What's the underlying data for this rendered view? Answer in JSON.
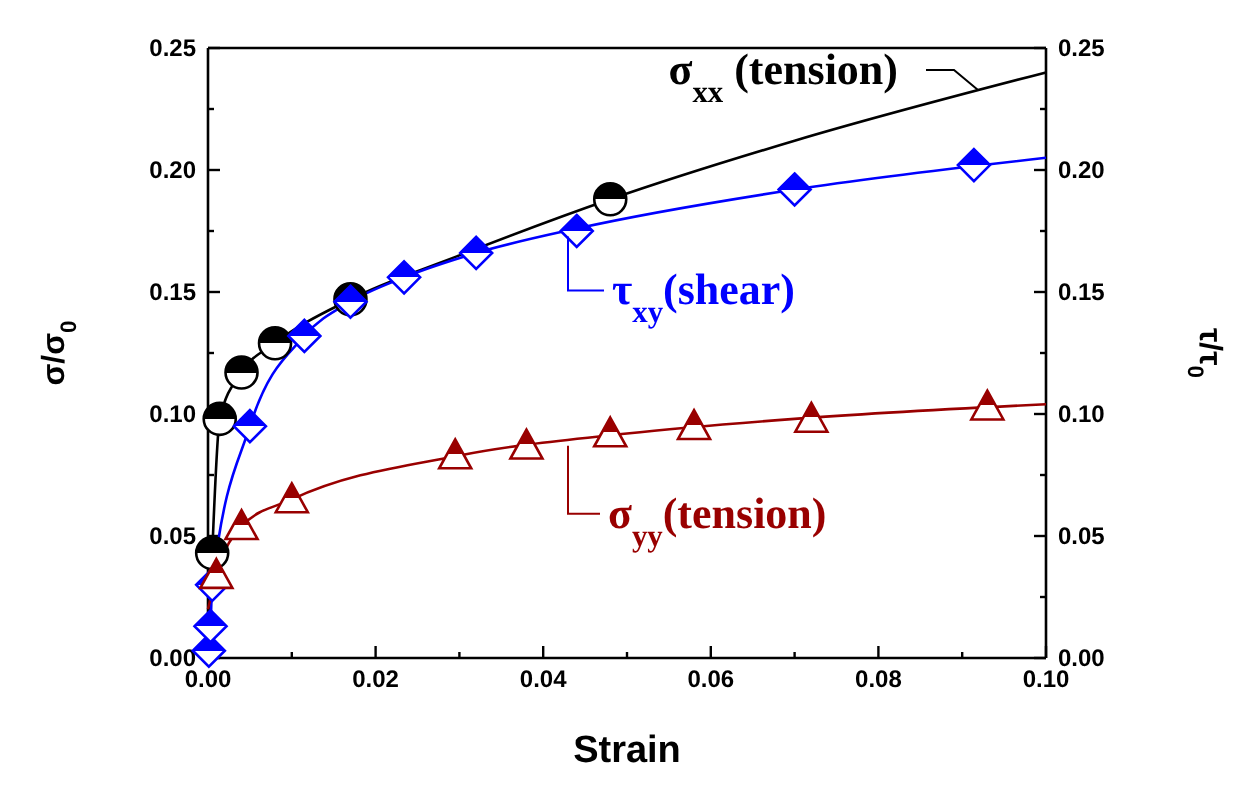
{
  "chart_data": {
    "type": "line",
    "xlabel": "Strain",
    "ylabel": "σ/σ$_{0}$",
    "y2label": "τ/τ$_{0}$",
    "xlim": [
      0,
      0.1
    ],
    "ylim": [
      0,
      0.25
    ],
    "y2lim": [
      0,
      0.25
    ],
    "xticks": [
      {
        "value": 0,
        "label": "0.00"
      },
      {
        "value": 0.01,
        "label": null
      },
      {
        "value": 0.02,
        "label": "0.02"
      },
      {
        "value": 0.03,
        "label": null
      },
      {
        "value": 0.04,
        "label": "0.04"
      },
      {
        "value": 0.05,
        "label": null
      },
      {
        "value": 0.06,
        "label": "0.06"
      },
      {
        "value": 0.07,
        "label": null
      },
      {
        "value": 0.08,
        "label": "0.08"
      },
      {
        "value": 0.09,
        "label": null
      },
      {
        "value": 0.1,
        "label": "0.10"
      }
    ],
    "yticks": [
      {
        "value": 0,
        "label": "0.00"
      },
      {
        "value": 0.025,
        "label": null
      },
      {
        "value": 0.05,
        "label": "0.05"
      },
      {
        "value": 0.075,
        "label": null
      },
      {
        "value": 0.1,
        "label": "0.10"
      },
      {
        "value": 0.125,
        "label": null
      },
      {
        "value": 0.15,
        "label": "0.15"
      },
      {
        "value": 0.175,
        "label": null
      },
      {
        "value": 0.2,
        "label": "0.20"
      },
      {
        "value": 0.225,
        "label": null
      },
      {
        "value": 0.25,
        "label": "0.25"
      }
    ],
    "y2ticks": [
      {
        "value": 0,
        "label": "0.00"
      },
      {
        "value": 0.025,
        "label": null
      },
      {
        "value": 0.05,
        "label": "0.05"
      },
      {
        "value": 0.075,
        "label": null
      },
      {
        "value": 0.1,
        "label": "0.10"
      },
      {
        "value": 0.125,
        "label": null
      },
      {
        "value": 0.15,
        "label": "0.15"
      },
      {
        "value": 0.175,
        "label": null
      },
      {
        "value": 0.2,
        "label": "0.20"
      },
      {
        "value": 0.225,
        "label": null
      },
      {
        "value": 0.25,
        "label": "0.25"
      }
    ],
    "grid": false,
    "series": [
      {
        "color": "#000000",
        "x": [
          0,
          0.0005,
          0.0014,
          0.004,
          0.008,
          0.017,
          0.03,
          0.048,
          0.07,
          0.1
        ],
        "values": [
          0,
          0.043,
          0.098,
          0.117,
          0.129,
          0.147,
          0.165,
          0.188,
          0.212,
          0.24
        ]
      },
      {
        "color": "#0000ff",
        "x": [
          0,
          0.0003,
          0.0005,
          0.005,
          0.0115,
          0.017,
          0.0234,
          0.032,
          0.044,
          0.07,
          0.1
        ],
        "values": [
          0,
          0.013,
          0.03,
          0.095,
          0.132,
          0.146,
          0.156,
          0.166,
          0.176,
          0.192,
          0.205
        ]
      },
      {
        "color": "#990000",
        "x": [
          0,
          0.001,
          0.004,
          0.01,
          0.03,
          0.05,
          0.07,
          0.1
        ],
        "values": [
          0.02,
          0.034,
          0.054,
          0.065,
          0.083,
          0.092,
          0.098,
          0.104
        ]
      },
      {
        "type": "scatter",
        "color": "#000000",
        "marker": "circle",
        "x": [
          0.0005,
          0.0014,
          0.004,
          0.008,
          0.017,
          0.048
        ],
        "values": [
          0.043,
          0.098,
          0.117,
          0.129,
          0.147,
          0.188
        ]
      },
      {
        "type": "scatter",
        "color": "#0000ff",
        "marker": "diamond",
        "x": [
          0.0001,
          0.0003,
          0.0005,
          0.005,
          0.0115,
          0.017,
          0.0234,
          0.032,
          0.044,
          0.07,
          0.0914
        ],
        "values": [
          0.003,
          0.013,
          0.03,
          0.095,
          0.132,
          0.146,
          0.156,
          0.166,
          0.175,
          0.192,
          0.202
        ]
      },
      {
        "type": "scatter",
        "color": "#990000",
        "marker": "triangle",
        "x": [
          0.001,
          0.004,
          0.01,
          0.0295,
          0.038,
          0.048,
          0.058,
          0.072,
          0.093
        ],
        "values": [
          0.034,
          0.054,
          0.065,
          0.083,
          0.087,
          0.092,
          0.095,
          0.098,
          0.103
        ]
      }
    ],
    "annotations": [
      "σ$_{xx}$ (tension)",
      "τ$_{xy}$(shear)",
      "σ$_{yy}$(tension)"
    ]
  }
}
